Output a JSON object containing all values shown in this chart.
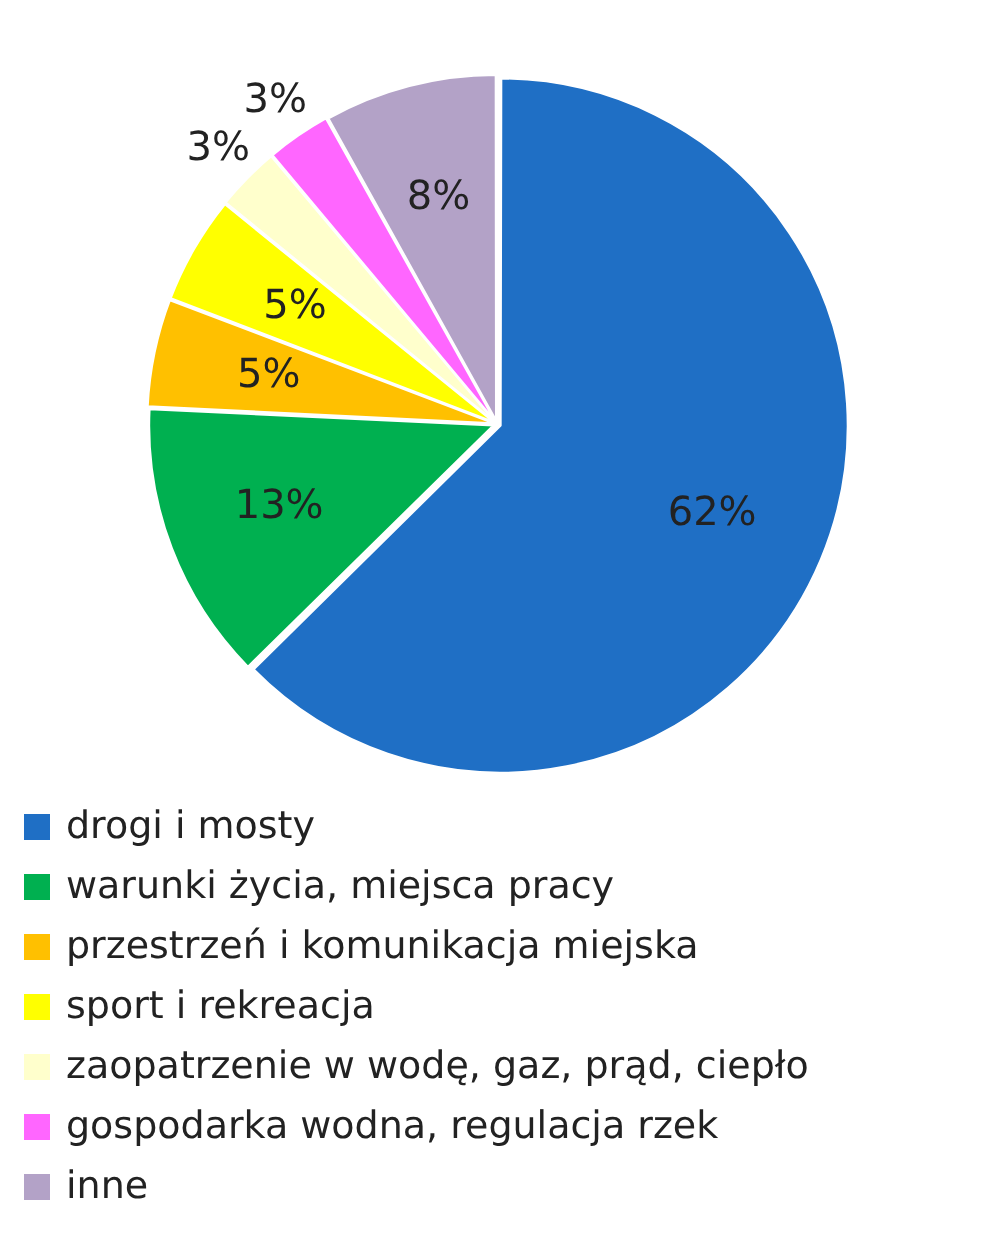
{
  "chart_data": {
    "type": "pie",
    "categories": [
      "drogi i mosty",
      "warunki życia, miejsca pracy",
      "przestrzeń i komunikacja miejska",
      "sport i rekreacja",
      "zaopatrzenie w wodę, gaz, prąd, ciepło",
      "gospodarka wodna, regulacja rzek",
      "inne"
    ],
    "values": [
      62,
      13,
      5,
      5,
      3,
      3,
      8
    ],
    "colors": [
      "#1f6fc5",
      "#00b050",
      "#ffc000",
      "#ffff00",
      "#ffffcc",
      "#ff66ff",
      "#b3a2c7"
    ],
    "value_labels": [
      "62%",
      "13%",
      "5%",
      "5%",
      "3%",
      "3%",
      "8%"
    ],
    "legend": "bottom"
  }
}
